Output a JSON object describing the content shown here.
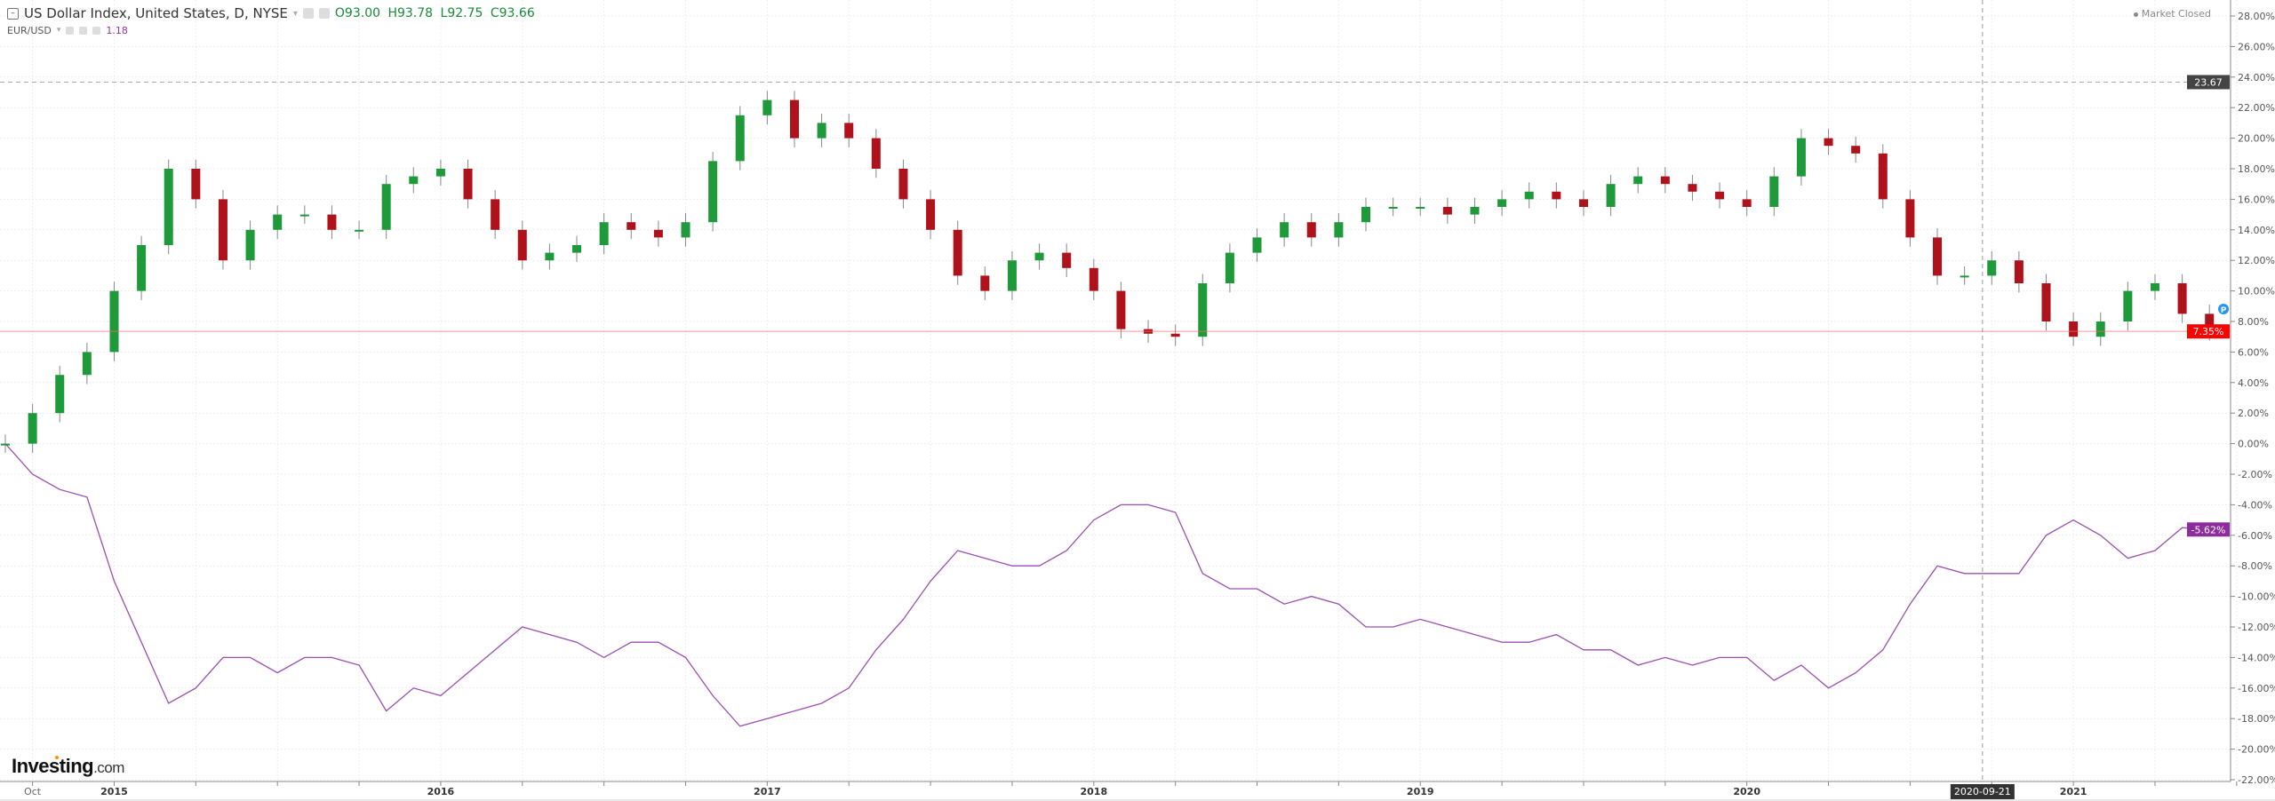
{
  "legend": {
    "main_symbol": "US Dollar Index, United States, D, NYSE",
    "ohlc": {
      "open": "O93.00",
      "high": "H93.78",
      "low": "L92.75",
      "close": "C93.66"
    },
    "compare_symbol": "EUR/USD",
    "compare_value": "1.18"
  },
  "status": "Market Closed",
  "logo": {
    "main": "Investing",
    "suffix": ".com"
  },
  "colors": {
    "up": "#1f9a3a",
    "down": "#b0121b",
    "compare": "#9b4fb0",
    "last_price_line": "#ff6b6b",
    "last_price_label": "#ff0000",
    "compare_label": "#8e2c9e",
    "crosshair_label": "#333333",
    "alert_marker": "#2196f3"
  },
  "chart_data": {
    "type": "line",
    "comparison_mode": "percent",
    "x_tick_labels": [
      "Oct",
      "2015",
      "2016",
      "2017",
      "2018",
      "2019",
      "2020",
      "2021"
    ],
    "y_tick_labels": [
      "28.00%",
      "26.00%",
      "24.00%",
      "22.00%",
      "20.00%",
      "18.00%",
      "16.00%",
      "14.00%",
      "12.00%",
      "10.00%",
      "8.00%",
      "6.00%",
      "4.00%",
      "2.00%",
      "0.00%",
      "-2.00%",
      "-4.00%",
      "-6.00%",
      "-8.00%",
      "-10.00%",
      "-12.00%",
      "-14.00%",
      "-16.00%",
      "-18.00%",
      "-20.00%",
      "-22.00%"
    ],
    "ylim": [
      -22,
      28
    ],
    "y_axis_position": "right",
    "grid": true,
    "x": [
      "2014-09",
      "2014-10",
      "2014-11",
      "2014-12",
      "2015-01",
      "2015-02",
      "2015-03",
      "2015-04",
      "2015-05",
      "2015-06",
      "2015-07",
      "2015-08",
      "2015-09",
      "2015-10",
      "2015-11",
      "2015-12",
      "2016-01",
      "2016-02",
      "2016-03",
      "2016-04",
      "2016-05",
      "2016-06",
      "2016-07",
      "2016-08",
      "2016-09",
      "2016-10",
      "2016-11",
      "2016-12",
      "2017-01",
      "2017-02",
      "2017-03",
      "2017-04",
      "2017-05",
      "2017-06",
      "2017-07",
      "2017-08",
      "2017-09",
      "2017-10",
      "2017-11",
      "2017-12",
      "2018-01",
      "2018-02",
      "2018-03",
      "2018-04",
      "2018-05",
      "2018-06",
      "2018-07",
      "2018-08",
      "2018-09",
      "2018-10",
      "2018-11",
      "2018-12",
      "2019-01",
      "2019-02",
      "2019-03",
      "2019-04",
      "2019-05",
      "2019-06",
      "2019-07",
      "2019-08",
      "2019-09",
      "2019-10",
      "2019-11",
      "2019-12",
      "2020-01",
      "2020-02",
      "2020-03",
      "2020-04",
      "2020-05",
      "2020-06",
      "2020-07",
      "2020-08",
      "2020-09",
      "2020-10",
      "2020-11",
      "2020-12",
      "2021-01",
      "2021-02",
      "2021-03",
      "2021-04",
      "2021-05",
      "2021-06"
    ],
    "series": [
      {
        "name": "US Dollar Index",
        "style": "candlestick",
        "values": [
          0,
          2,
          4.5,
          6,
          10,
          13,
          18,
          16,
          12,
          14,
          15,
          15,
          14,
          14,
          17,
          17.5,
          18,
          16,
          14,
          12,
          12.5,
          13,
          14.5,
          14,
          13.5,
          14.5,
          18.5,
          21.5,
          22.5,
          20,
          21,
          20,
          18,
          16,
          14,
          11,
          10,
          12,
          12.5,
          11.5,
          10,
          7.5,
          7.2,
          7,
          10.5,
          12.5,
          13.5,
          14.5,
          13.5,
          14.5,
          15.5,
          15.5,
          15.5,
          15,
          15.5,
          16,
          16.5,
          16,
          15.5,
          17,
          17.5,
          17,
          16.5,
          16,
          15.5,
          17.5,
          20,
          19.5,
          19,
          16,
          13.5,
          11,
          11,
          12,
          10.5,
          8,
          7,
          8,
          10,
          10.5,
          8.5,
          7.35
        ]
      },
      {
        "name": "EUR/USD",
        "style": "line",
        "values": [
          0,
          -2,
          -3,
          -3.5,
          -9,
          -13,
          -17,
          -16,
          -14,
          -14,
          -15,
          -14,
          -14,
          -14.5,
          -17.5,
          -16,
          -16.5,
          -15,
          -13.5,
          -12,
          -12.5,
          -13,
          -14,
          -13,
          -13,
          -14,
          -16.5,
          -18.5,
          -18,
          -17.5,
          -17,
          -16,
          -13.5,
          -11.5,
          -9,
          -7,
          -7.5,
          -8,
          -8,
          -7,
          -5,
          -4,
          -4,
          -4.5,
          -8.5,
          -9.5,
          -9.5,
          -10.5,
          -10,
          -10.5,
          -12,
          -12,
          -11.5,
          -12,
          -12.5,
          -13,
          -13,
          -12.5,
          -13.5,
          -13.5,
          -14.5,
          -14,
          -14.5,
          -14,
          -14,
          -15.5,
          -14.5,
          -16,
          -15,
          -13.5,
          -10.5,
          -8,
          -8.5,
          -8.5,
          -8.5,
          -6,
          -5,
          -6,
          -7.5,
          -7,
          -5.5,
          -5.62
        ]
      }
    ],
    "annotations": {
      "last_value_main": "7.35%",
      "last_value_compare": "-5.62%",
      "horizontal_dashed_line_value": 23.67,
      "horizontal_dashed_line_label": "23.67",
      "crosshair_date_label": "2020-09-21",
      "alert_marker_label": "P"
    }
  }
}
